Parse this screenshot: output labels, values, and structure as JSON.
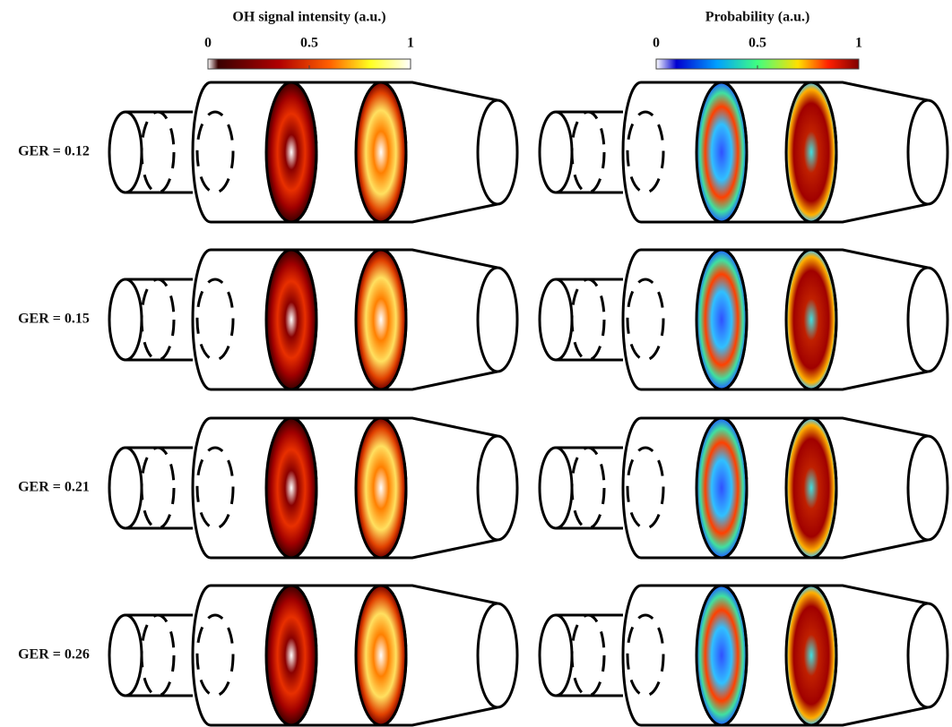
{
  "panels": [
    {
      "title": "OH signal intensity (a.u.)",
      "colorbar": {
        "lim": [
          0,
          1
        ],
        "ticks": [
          0,
          0.5,
          1
        ]
      }
    },
    {
      "title": "Probability (a.u.)",
      "colorbar": {
        "lim": [
          0,
          1
        ],
        "ticks": [
          0,
          0.5,
          1
        ]
      }
    }
  ],
  "rows": [
    {
      "label": "GER = 0.12"
    },
    {
      "label": "GER = 0.15"
    },
    {
      "label": "GER = 0.21"
    },
    {
      "label": "GER = 0.26"
    }
  ]
}
